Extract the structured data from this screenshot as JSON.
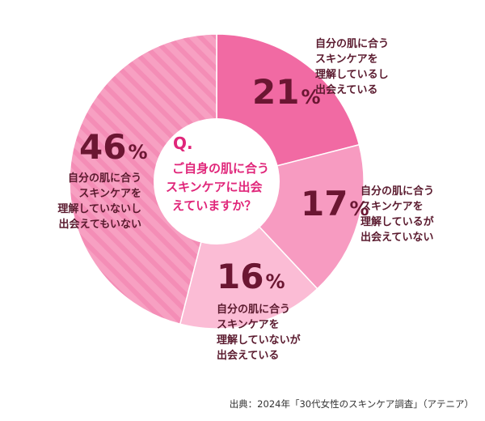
{
  "chart_data": {
    "type": "pie",
    "categories": [
      "自分の肌に合うスキンケアを理解しているし出会えている",
      "自分の肌に合うスキンケアを理解しているが出会えていない",
      "自分の肌に合うスキンケアを理解していないが出会えている",
      "自分の肌に合うスキンケアを理解していないし出会えてもいない"
    ],
    "values": [
      21,
      17,
      16,
      46
    ],
    "unit": "%",
    "labels": [
      [
        "自分の肌に合う",
        "スキンケアを",
        "理解しているし",
        "出会えている"
      ],
      [
        "自分の肌に合う",
        "スキンケアを",
        "理解しているが",
        "出会えていない"
      ],
      [
        "自分の肌に合う",
        "スキンケアを",
        "理解していないが",
        "出会えている"
      ],
      [
        "自分の肌に合う",
        "スキンケアを",
        "理解していないし",
        "出会えてもいない"
      ]
    ],
    "colors": [
      "#f16aa3",
      "#f79bc1",
      "#fbbcd5",
      "#f7a0c2"
    ],
    "hatched": [
      false,
      false,
      false,
      true
    ],
    "center_question": {
      "mark": "Q.",
      "lines": [
        "ご自身の肌に合う",
        "スキンケアに出会",
        "えていますか？"
      ]
    },
    "source": "出典：2024年「30代女性のスキンケア調査」（アテニア）"
  }
}
